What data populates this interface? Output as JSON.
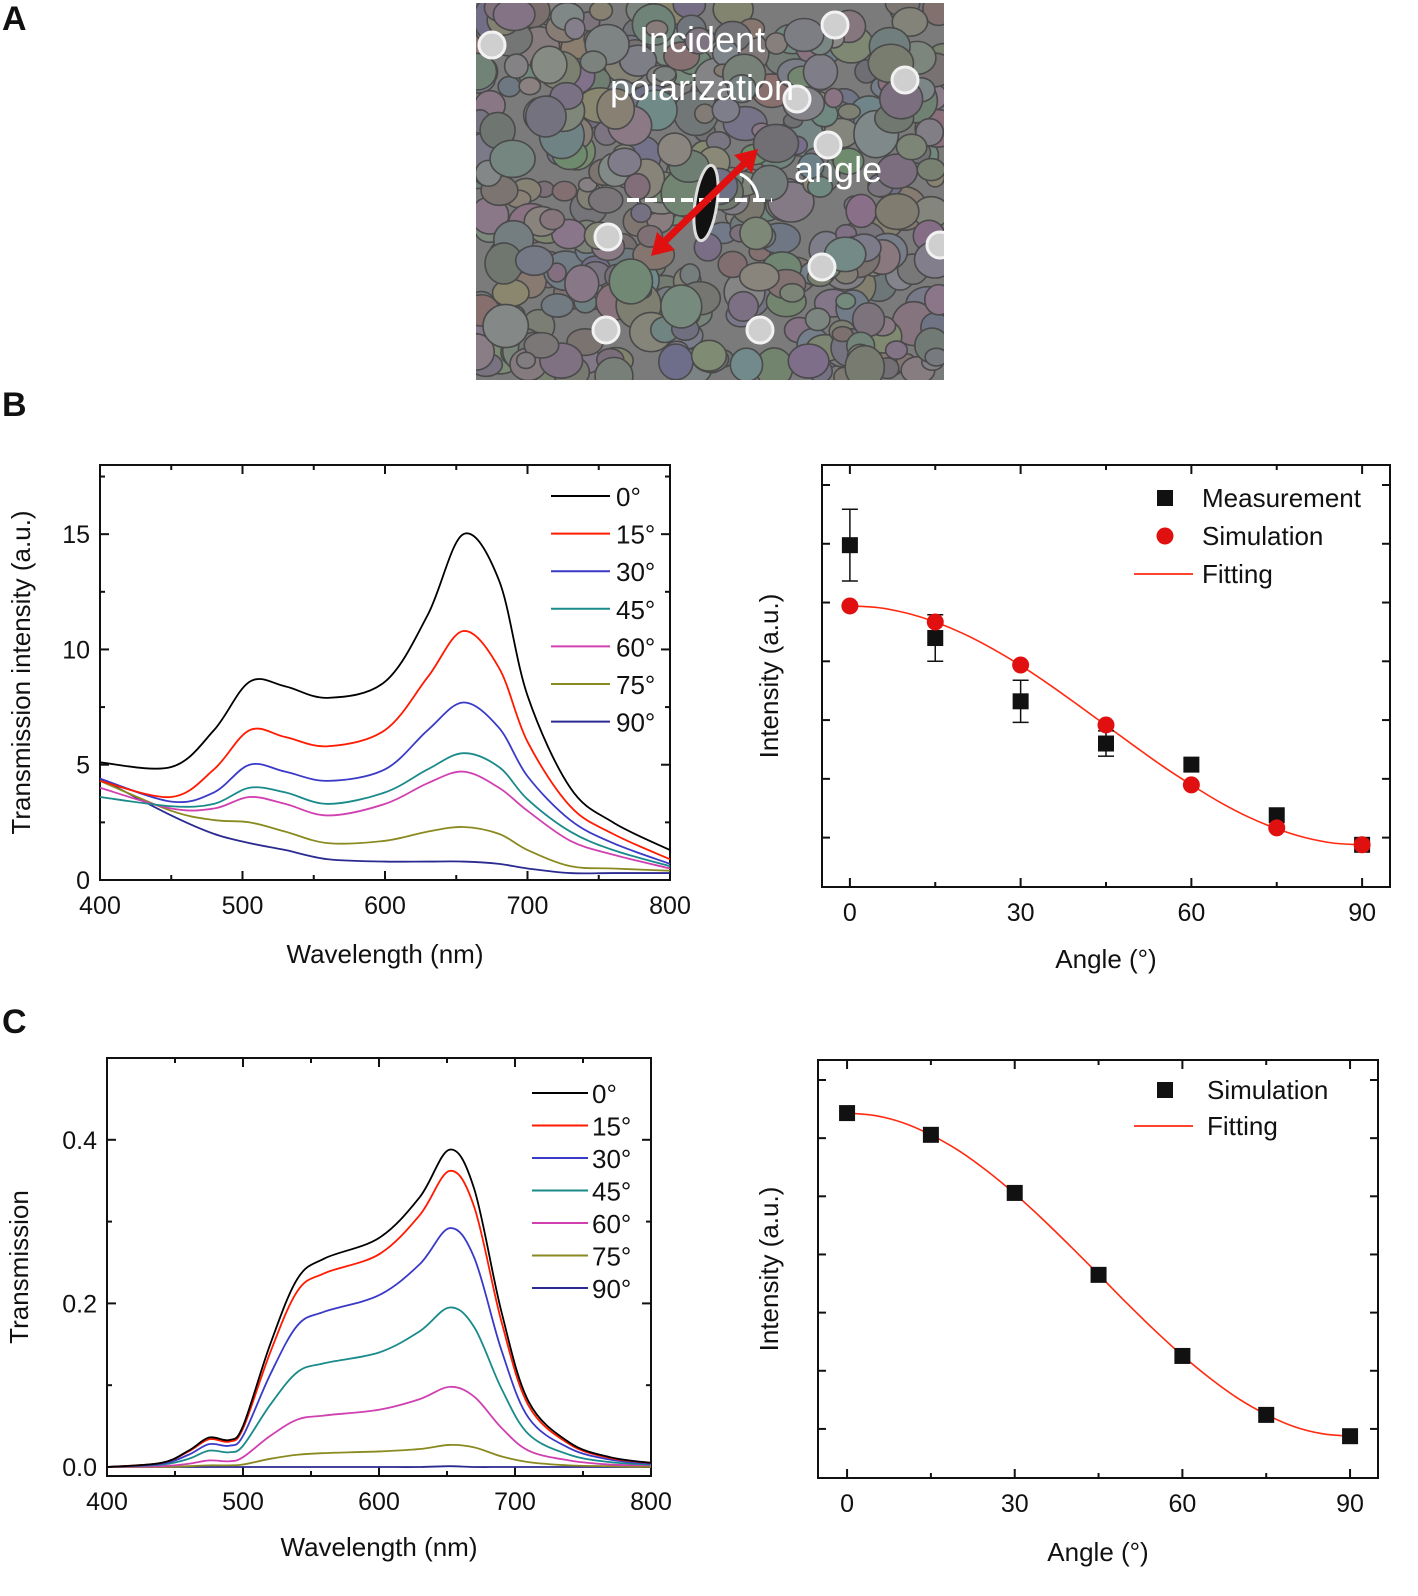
{
  "panel_labels": {
    "a": "A",
    "b": "B",
    "c": "C"
  },
  "panel_a": {
    "image": "SEM micrograph of slot aperture in granular metal film",
    "label_polarization_1": "Incident",
    "label_polarization_2": "polarization",
    "label_angle": "angle",
    "colors": {
      "arrow": "#e01010",
      "reference_line": "#ffffff"
    }
  },
  "chart_data": [
    {
      "type": "line",
      "panel": "B",
      "xlabel": "Wavelength (nm)",
      "ylabel": "Transmission intensity (a.u.)",
      "xlim": [
        400,
        800
      ],
      "ylim": [
        0,
        18
      ],
      "xticks": [
        400,
        500,
        600,
        700,
        800
      ],
      "yticks": [
        0,
        5,
        10,
        15
      ],
      "legend": "top-right",
      "x": [
        400,
        450,
        480,
        505,
        530,
        560,
        600,
        630,
        655,
        680,
        700,
        730,
        760,
        800
      ],
      "series": [
        {
          "name": "0°",
          "color": "#000000",
          "values": [
            5.1,
            4.9,
            6.5,
            8.6,
            8.4,
            7.9,
            8.6,
            11.5,
            15.0,
            13.0,
            8.0,
            4.0,
            2.5,
            1.3
          ]
        },
        {
          "name": "15°",
          "color": "#ff1a00",
          "values": [
            4.3,
            3.6,
            4.8,
            6.5,
            6.2,
            5.8,
            6.5,
            8.8,
            10.8,
            9.2,
            6.0,
            3.2,
            2.0,
            0.9
          ]
        },
        {
          "name": "30°",
          "color": "#3a3ac8",
          "values": [
            4.4,
            3.4,
            3.8,
            5.0,
            4.7,
            4.3,
            4.8,
            6.5,
            7.7,
            6.6,
            4.5,
            2.6,
            1.6,
            0.7
          ]
        },
        {
          "name": "45°",
          "color": "#1a8a8a",
          "values": [
            3.6,
            3.2,
            3.3,
            4.0,
            3.8,
            3.3,
            3.8,
            4.8,
            5.5,
            4.9,
            3.5,
            2.1,
            1.3,
            0.6
          ]
        },
        {
          "name": "60°",
          "color": "#d040b0",
          "values": [
            4.0,
            3.1,
            3.1,
            3.6,
            3.3,
            2.8,
            3.3,
            4.2,
            4.7,
            4.0,
            3.0,
            1.7,
            1.1,
            0.5
          ]
        },
        {
          "name": "75°",
          "color": "#8a8a20",
          "values": [
            4.3,
            3.0,
            2.6,
            2.5,
            2.1,
            1.6,
            1.7,
            2.1,
            2.3,
            2.0,
            1.3,
            0.6,
            0.5,
            0.4
          ]
        },
        {
          "name": "90°",
          "color": "#2a2a90",
          "values": [
            4.4,
            2.8,
            2.0,
            1.6,
            1.3,
            0.9,
            0.8,
            0.8,
            0.8,
            0.7,
            0.5,
            0.3,
            0.3,
            0.3
          ]
        }
      ]
    },
    {
      "type": "scatter",
      "panel": "B",
      "xlabel": "Angle (°)",
      "ylabel": "Intensity (a.u.)",
      "xlim": [
        -4.9,
        94.9
      ],
      "ylim": [
        0,
        1
      ],
      "xticks": [
        0,
        30,
        60,
        90
      ],
      "yticks_unlabeled": true,
      "legend": "top-right",
      "x": [
        0,
        15,
        30,
        45,
        60,
        75,
        90
      ],
      "series": [
        {
          "name": "Measurement",
          "marker": "square",
          "color": "#111111",
          "values": [
            0.81,
            0.59,
            0.44,
            0.34,
            0.29,
            0.17,
            0.1
          ],
          "errors": [
            0.085,
            0.055,
            0.05,
            0.03,
            0.01,
            0.01,
            0.01
          ]
        },
        {
          "name": "Simulation",
          "marker": "circle",
          "color": "#e01010",
          "values": [
            0.666,
            0.628,
            0.526,
            0.384,
            0.242,
            0.14,
            0.1
          ]
        },
        {
          "name": "Fitting",
          "marker": "line",
          "color": "#ff2a10",
          "x": [
            0,
            5,
            10,
            15,
            20,
            25,
            30,
            35,
            40,
            45,
            50,
            55,
            60,
            65,
            70,
            75,
            80,
            85,
            90
          ],
          "values": [
            0.666,
            0.662,
            0.649,
            0.628,
            0.6,
            0.565,
            0.525,
            0.48,
            0.432,
            0.383,
            0.334,
            0.286,
            0.242,
            0.201,
            0.166,
            0.138,
            0.117,
            0.104,
            0.1
          ]
        }
      ]
    },
    {
      "type": "line",
      "panel": "C",
      "xlabel": "Wavelength (nm)",
      "ylabel": "Transmission",
      "xlim": [
        400,
        800
      ],
      "ylim": [
        -0.011,
        0.5
      ],
      "xticks": [
        400,
        500,
        600,
        700,
        800
      ],
      "yticks": [
        0.0,
        0.2,
        0.4
      ],
      "legend": "top-right",
      "x": [
        400,
        440,
        460,
        475,
        490,
        500,
        520,
        540,
        560,
        600,
        630,
        652,
        670,
        690,
        710,
        740,
        770,
        800
      ],
      "series": [
        {
          "name": "0°",
          "color": "#000000",
          "values": [
            0.0,
            0.005,
            0.02,
            0.036,
            0.033,
            0.05,
            0.15,
            0.23,
            0.255,
            0.28,
            0.33,
            0.388,
            0.34,
            0.19,
            0.08,
            0.03,
            0.012,
            0.005
          ]
        },
        {
          "name": "15°",
          "color": "#ff1a00",
          "values": [
            0.0,
            0.005,
            0.019,
            0.034,
            0.031,
            0.047,
            0.14,
            0.215,
            0.237,
            0.26,
            0.308,
            0.362,
            0.318,
            0.178,
            0.075,
            0.028,
            0.011,
            0.005
          ]
        },
        {
          "name": "30°",
          "color": "#3a3ac8",
          "values": [
            0.0,
            0.004,
            0.015,
            0.028,
            0.026,
            0.038,
            0.113,
            0.173,
            0.19,
            0.21,
            0.248,
            0.292,
            0.256,
            0.143,
            0.06,
            0.023,
            0.009,
            0.004
          ]
        },
        {
          "name": "45°",
          "color": "#1a8a8a",
          "values": [
            0.0,
            0.003,
            0.01,
            0.02,
            0.018,
            0.026,
            0.076,
            0.116,
            0.127,
            0.14,
            0.166,
            0.195,
            0.171,
            0.096,
            0.04,
            0.015,
            0.006,
            0.003
          ]
        },
        {
          "name": "60°",
          "color": "#d040b0",
          "values": [
            0.0,
            0.001,
            0.004,
            0.008,
            0.007,
            0.012,
            0.038,
            0.058,
            0.063,
            0.07,
            0.083,
            0.098,
            0.086,
            0.048,
            0.02,
            0.008,
            0.003,
            0.002
          ]
        },
        {
          "name": "75°",
          "color": "#8a8a20",
          "values": [
            0.0,
            0.0,
            0.001,
            0.002,
            0.002,
            0.003,
            0.01,
            0.015,
            0.017,
            0.019,
            0.022,
            0.027,
            0.024,
            0.013,
            0.006,
            0.002,
            0.001,
            0.0
          ]
        },
        {
          "name": "90°",
          "color": "#2a2a90",
          "values": [
            0.0,
            0.0,
            0.0,
            0.0,
            0.0,
            0.0,
            0.0,
            0.0,
            0.0,
            0.0,
            0.0,
            0.001,
            0.0,
            0.0,
            0.0,
            0.0,
            0.0,
            0.0
          ]
        }
      ]
    },
    {
      "type": "scatter",
      "panel": "C",
      "xlabel": "Angle (°)",
      "ylabel": "Intensity (a.u.)",
      "xlim": [
        -5.2,
        95
      ],
      "ylim": [
        0,
        1
      ],
      "xticks": [
        0,
        30,
        60,
        90
      ],
      "yticks_unlabeled": true,
      "legend": "top-right",
      "x": [
        0,
        15,
        30,
        45,
        60,
        75,
        90
      ],
      "series": [
        {
          "name": "Simulation",
          "marker": "square",
          "color": "#111111",
          "values": [
            0.873,
            0.821,
            0.682,
            0.486,
            0.292,
            0.151,
            0.1
          ]
        },
        {
          "name": "Fitting",
          "marker": "line",
          "color": "#ff2a10",
          "x": [
            0,
            5,
            10,
            15,
            20,
            25,
            30,
            35,
            40,
            45,
            50,
            55,
            60,
            65,
            70,
            75,
            80,
            85,
            90
          ],
          "values": [
            0.873,
            0.867,
            0.85,
            0.821,
            0.783,
            0.735,
            0.68,
            0.619,
            0.554,
            0.487,
            0.419,
            0.354,
            0.293,
            0.238,
            0.19,
            0.152,
            0.123,
            0.106,
            0.1
          ]
        }
      ]
    }
  ]
}
